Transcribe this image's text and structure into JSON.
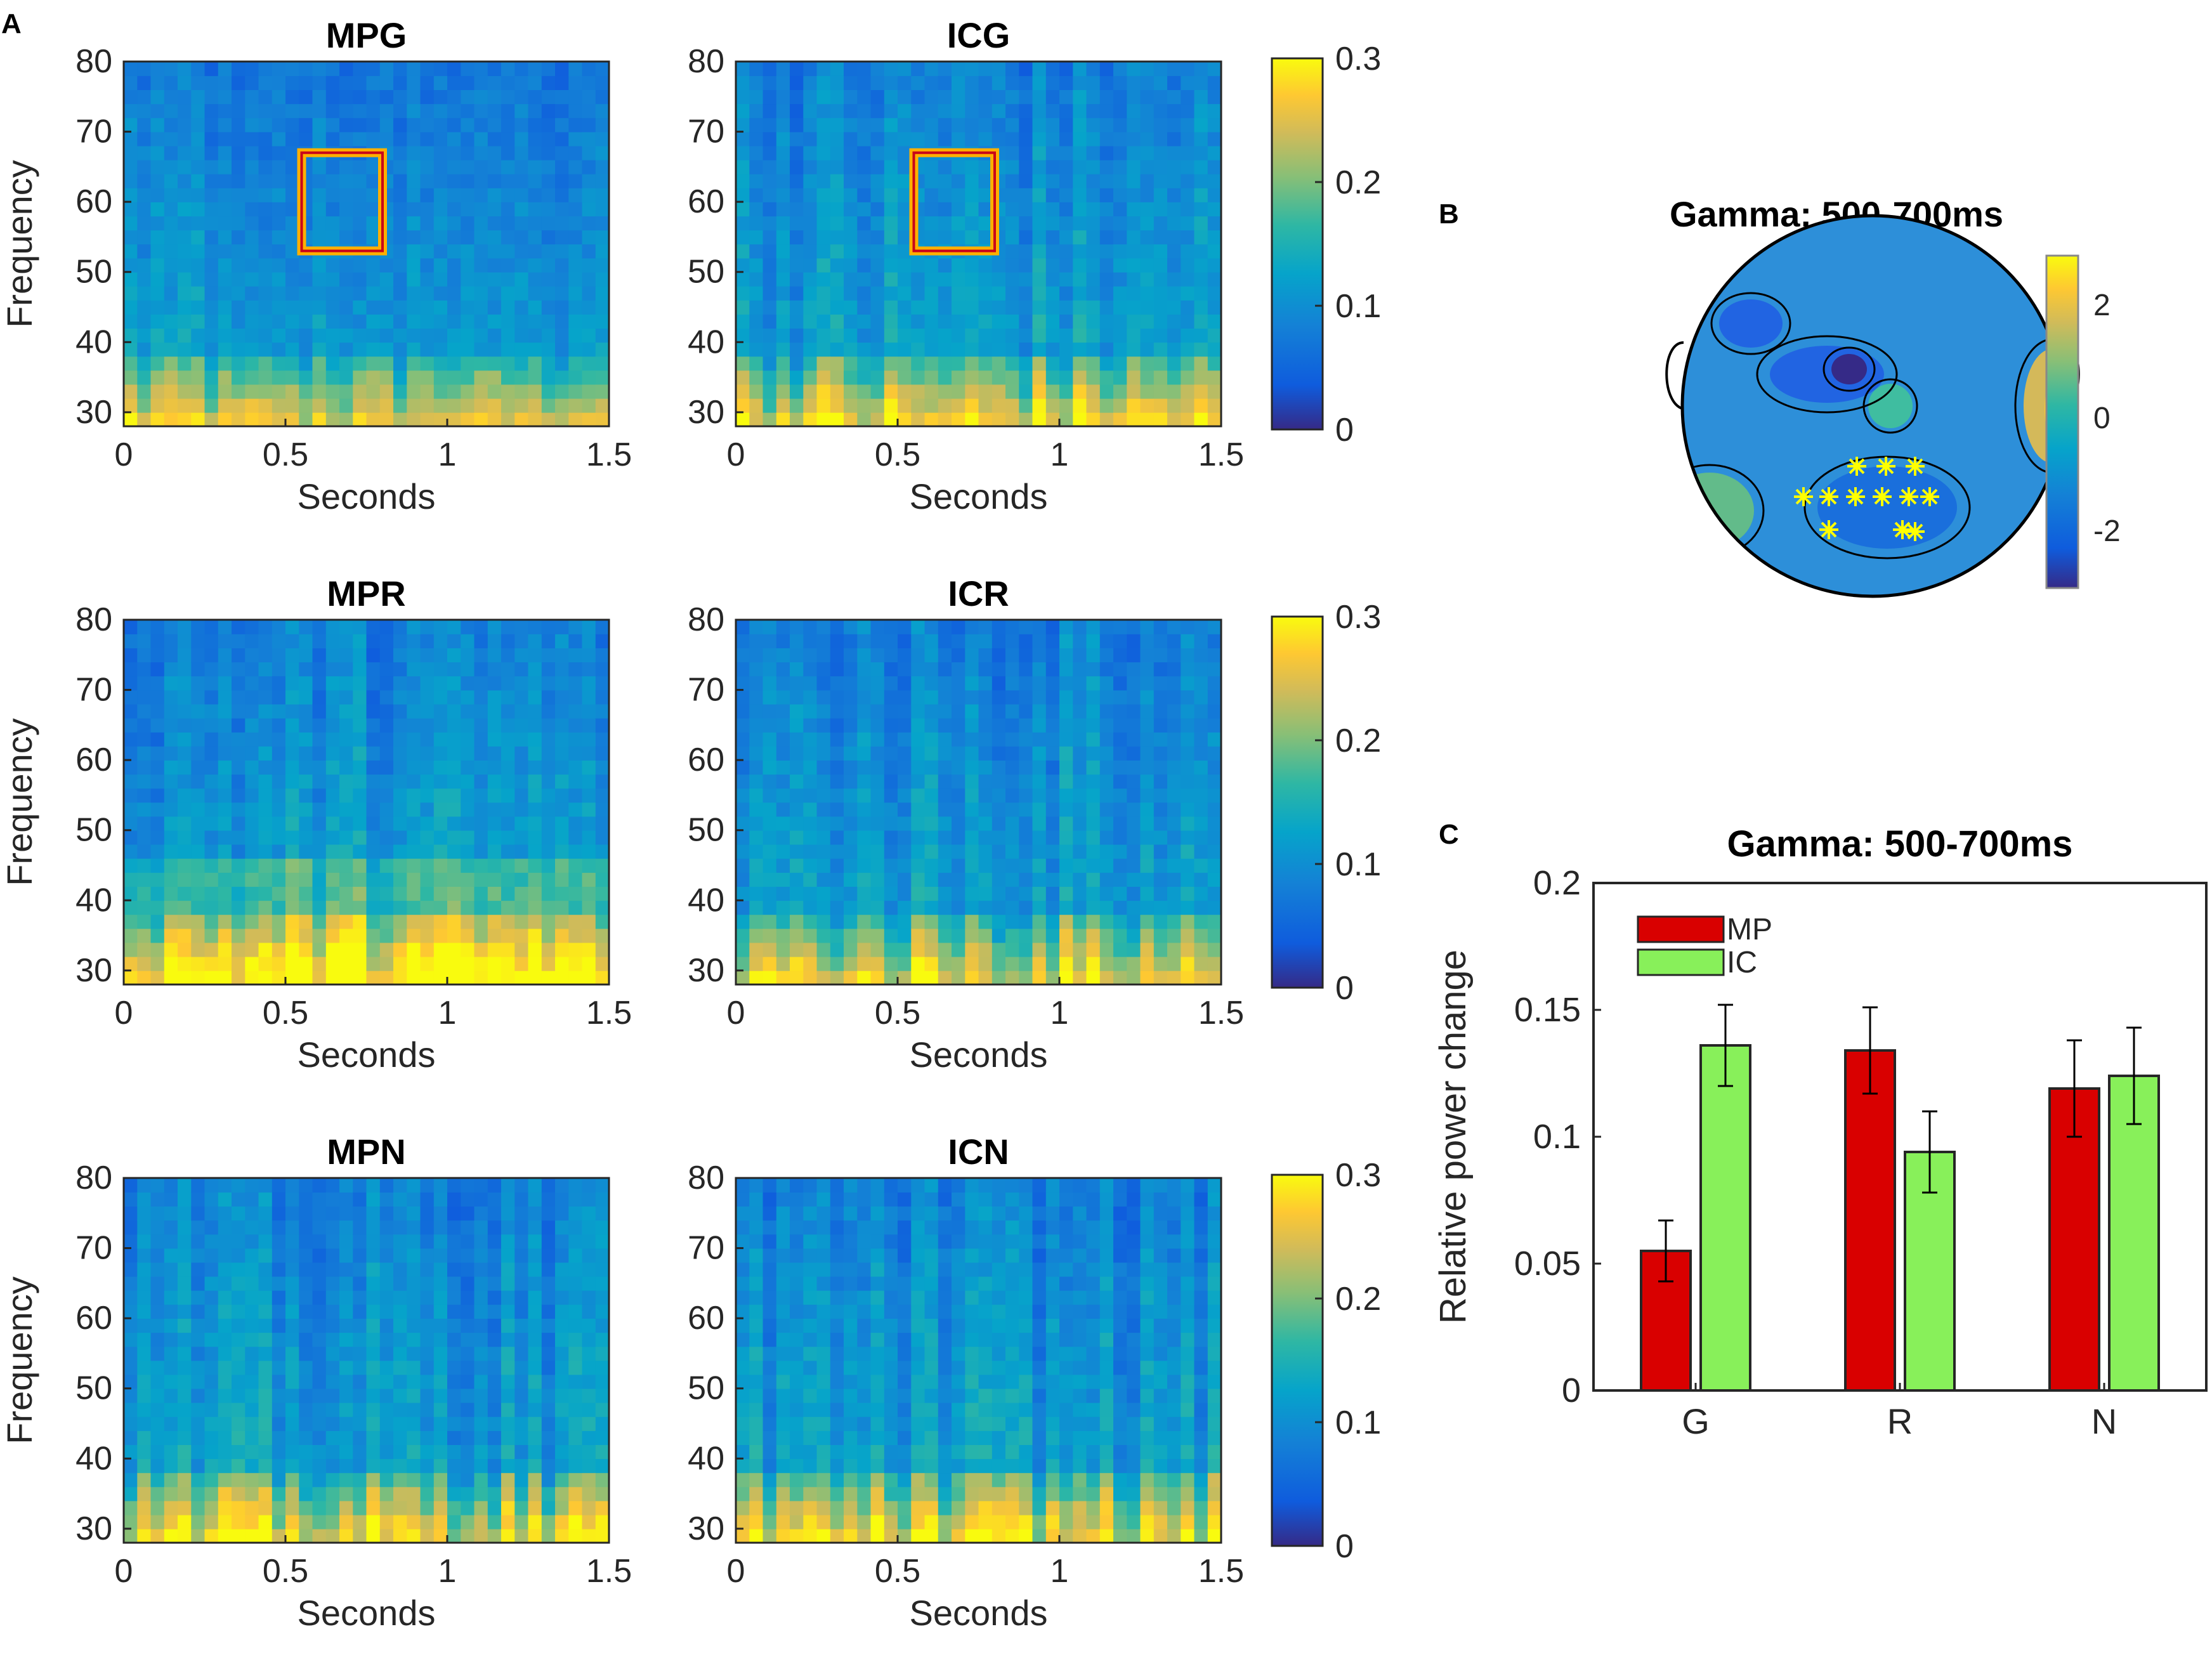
{
  "panel_labels": {
    "a": "A",
    "b": "B",
    "c": "C"
  },
  "colors": {
    "mp_bar": "#d90000",
    "ic_bar": "#88f05a",
    "roi_outer": "#ffb000",
    "roi_inner": "#c8001a",
    "sensor_marker": "#ffff00"
  },
  "chart_data": [
    {
      "type": "heatmap",
      "title": "MPG",
      "xlabel": "Seconds",
      "ylabel": "Frequency",
      "xlim": [
        0,
        1.5
      ],
      "ylim": [
        28,
        80
      ],
      "xticks": [
        "0",
        "0.5",
        "1",
        "1.5"
      ],
      "yticks": [
        "30",
        "40",
        "50",
        "60",
        "70",
        "80"
      ],
      "clim": [
        0,
        0.3
      ],
      "colorbar_ticks": [
        "0",
        "0.1",
        "0.2",
        "0.3"
      ],
      "highlight_window": {
        "x": [
          0.55,
          0.8
        ],
        "y": [
          53,
          67
        ]
      }
    },
    {
      "type": "heatmap",
      "title": "ICG",
      "xlabel": "Seconds",
      "ylabel": "",
      "xlim": [
        0,
        1.5
      ],
      "ylim": [
        28,
        80
      ],
      "xticks": [
        "0",
        "0.5",
        "1",
        "1.5"
      ],
      "yticks": [
        "30",
        "40",
        "50",
        "60",
        "70",
        "80"
      ],
      "clim": [
        0,
        0.3
      ],
      "colorbar_ticks": [
        "0",
        "0.1",
        "0.2",
        "0.3"
      ],
      "highlight_window": {
        "x": [
          0.55,
          0.8
        ],
        "y": [
          53,
          67
        ]
      }
    },
    {
      "type": "heatmap",
      "title": "MPR",
      "xlabel": "Seconds",
      "ylabel": "Frequency",
      "xlim": [
        0,
        1.5
      ],
      "ylim": [
        28,
        80
      ],
      "xticks": [
        "0",
        "0.5",
        "1",
        "1.5"
      ],
      "yticks": [
        "30",
        "40",
        "50",
        "60",
        "70",
        "80"
      ],
      "clim": [
        0,
        0.3
      ],
      "colorbar_ticks": [
        "0",
        "0.1",
        "0.2",
        "0.3"
      ]
    },
    {
      "type": "heatmap",
      "title": "ICR",
      "xlabel": "Seconds",
      "ylabel": "",
      "xlim": [
        0,
        1.5
      ],
      "ylim": [
        28,
        80
      ],
      "xticks": [
        "0",
        "0.5",
        "1",
        "1.5"
      ],
      "yticks": [
        "30",
        "40",
        "50",
        "60",
        "70",
        "80"
      ],
      "clim": [
        0,
        0.3
      ],
      "colorbar_ticks": [
        "0",
        "0.1",
        "0.2",
        "0.3"
      ]
    },
    {
      "type": "heatmap",
      "title": "MPN",
      "xlabel": "Seconds",
      "ylabel": "Frequency",
      "xlim": [
        0,
        1.5
      ],
      "ylim": [
        28,
        80
      ],
      "xticks": [
        "0",
        "0.5",
        "1",
        "1.5"
      ],
      "yticks": [
        "30",
        "40",
        "50",
        "60",
        "70",
        "80"
      ],
      "clim": [
        0,
        0.3
      ],
      "colorbar_ticks": [
        "0",
        "0.1",
        "0.2",
        "0.3"
      ]
    },
    {
      "type": "heatmap",
      "title": "ICN",
      "xlabel": "Seconds",
      "ylabel": "",
      "xlim": [
        0,
        1.5
      ],
      "ylim": [
        28,
        80
      ],
      "xticks": [
        "0",
        "0.5",
        "1",
        "1.5"
      ],
      "yticks": [
        "30",
        "40",
        "50",
        "60",
        "70",
        "80"
      ],
      "clim": [
        0,
        0.3
      ],
      "colorbar_ticks": [
        "0",
        "0.1",
        "0.2",
        "0.3"
      ]
    },
    {
      "type": "topographic_map",
      "title": "Gamma: 500-700ms",
      "clim": [
        -3,
        3
      ],
      "colorbar_ticks": [
        "2",
        "0",
        "-2"
      ],
      "significant_sensor_count": 12
    },
    {
      "type": "bar",
      "title": "Gamma: 500-700ms",
      "categories": [
        "G",
        "R",
        "N"
      ],
      "ylabel": "Relative power change",
      "ylim": [
        0,
        0.2
      ],
      "yticks": [
        "0",
        "0.05",
        "0.1",
        "0.15",
        "0.2"
      ],
      "legend_position": "top-left",
      "series": [
        {
          "name": "MP",
          "values": [
            0.055,
            0.134,
            0.119
          ],
          "errors": [
            0.012,
            0.017,
            0.019
          ]
        },
        {
          "name": "IC",
          "values": [
            0.136,
            0.094,
            0.124
          ],
          "errors": [
            0.016,
            0.016,
            0.019
          ]
        }
      ]
    }
  ]
}
